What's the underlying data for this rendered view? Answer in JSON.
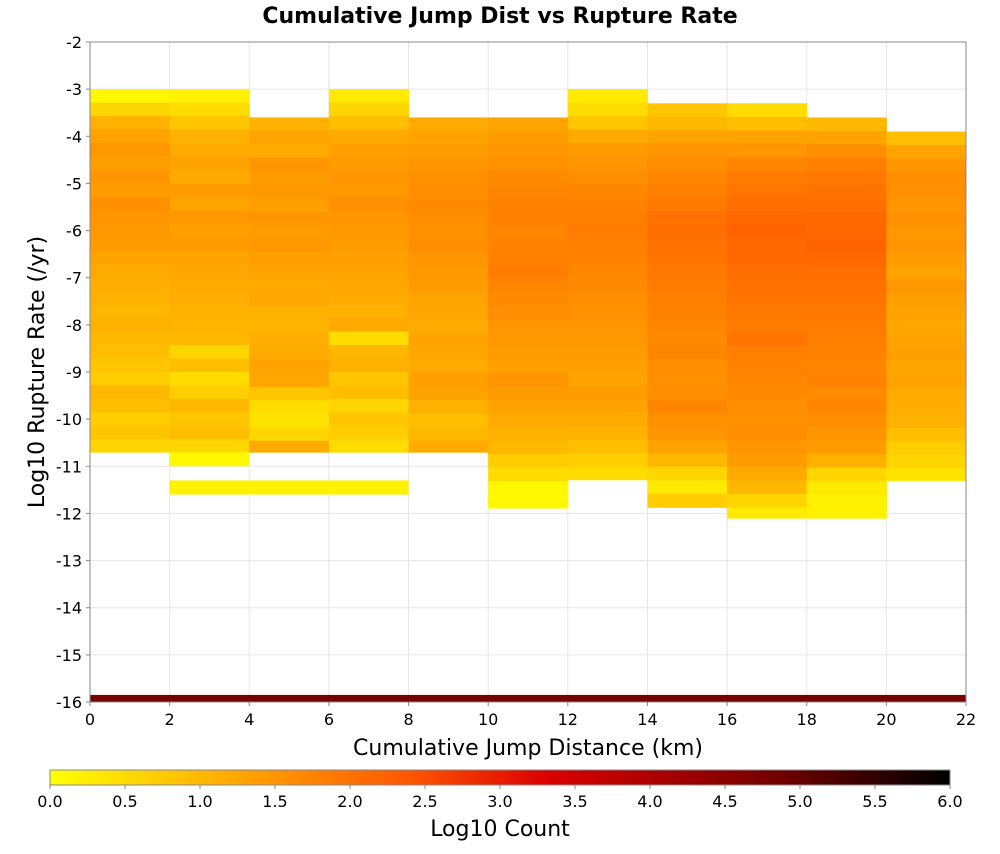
{
  "chart_data": {
    "type": "heatmap",
    "title": "Cumulative Jump Dist vs Rupture Rate",
    "xlabel": "Cumulative Jump Distance (km)",
    "ylabel": "Log10 Rupture Rate (/yr)",
    "xlim": [
      0,
      22
    ],
    "ylim": [
      -16,
      -2
    ],
    "x_ticks": [
      "0",
      "2",
      "4",
      "6",
      "8",
      "10",
      "12",
      "14",
      "16",
      "18",
      "20",
      "22"
    ],
    "y_ticks": [
      "-2",
      "-3",
      "-4",
      "-5",
      "-6",
      "-7",
      "-8",
      "-9",
      "-10",
      "-11",
      "-12",
      "-13",
      "-14",
      "-15",
      "-16"
    ],
    "x_bin_width": 2,
    "y_bin_height": 0.2857,
    "grid": true,
    "colorbar": {
      "label": "Log10 Count",
      "range": [
        0,
        6
      ],
      "ticks": [
        "0.0",
        "0.5",
        "1.0",
        "1.5",
        "2.0",
        "2.5",
        "3.0",
        "3.5",
        "4.0",
        "4.5",
        "5.0",
        "5.5",
        "6.0"
      ],
      "colors": [
        "#ffff00",
        "#ffaa00",
        "#ff5500",
        "#dd0000",
        "#770000",
        "#000000"
      ]
    },
    "columns": [
      {
        "x_start": 0,
        "y_top": -3.0,
        "y_bottom": -10.7,
        "values": [
          0.1,
          0.6,
          1.1,
          1.3,
          1.45,
          1.35,
          1.5,
          1.4,
          1.55,
          1.5,
          1.45,
          1.4,
          1.3,
          1.2,
          1.15,
          1.1,
          1.0,
          1.1,
          1.0,
          0.9,
          0.8,
          0.7,
          1.0,
          0.9,
          0.7,
          0.8,
          0.6
        ]
      },
      {
        "x_start": 2,
        "y_top": -3.0,
        "y_bottom": -10.7,
        "values": [
          0.2,
          0.5,
          0.8,
          1.1,
          1.2,
          1.3,
          1.2,
          1.4,
          1.3,
          1.45,
          1.35,
          1.4,
          1.3,
          1.25,
          1.2,
          1.15,
          1.1,
          1.05,
          1.0,
          0.6,
          0.9,
          0.5,
          0.7,
          1.0,
          0.8,
          0.9,
          0.6
        ]
      },
      {
        "x_start": 4,
        "y_top": -3.6,
        "y_bottom": -10.7,
        "values": [
          1.1,
          1.3,
          1.2,
          1.5,
          1.4,
          1.45,
          1.35,
          1.5,
          1.4,
          1.45,
          1.35,
          1.3,
          1.2,
          1.25,
          1.1,
          1.05,
          1.15,
          1.2,
          1.3,
          1.25,
          0.8,
          0.5,
          0.4,
          0.6,
          1.2
        ]
      },
      {
        "x_start": 6,
        "y_top": -3.0,
        "y_bottom": -10.7,
        "values": [
          0.3,
          0.6,
          0.9,
          1.2,
          1.35,
          1.4,
          1.5,
          1.45,
          1.55,
          1.5,
          1.45,
          1.4,
          1.35,
          1.3,
          1.25,
          1.2,
          1.1,
          1.2,
          0.5,
          1.0,
          1.1,
          0.8,
          0.9,
          0.6,
          0.8,
          0.7,
          0.5
        ]
      },
      {
        "x_start": 8,
        "y_top": -3.6,
        "y_bottom": -10.7,
        "values": [
          1.2,
          1.3,
          1.4,
          1.5,
          1.55,
          1.6,
          1.65,
          1.6,
          1.55,
          1.6,
          1.5,
          1.45,
          1.4,
          1.3,
          1.25,
          1.2,
          1.3,
          1.25,
          1.2,
          1.35,
          1.3,
          1.1,
          0.9,
          1.0,
          1.2
        ]
      },
      {
        "x_start": 10,
        "y_top": -3.6,
        "y_bottom": -11.9,
        "values": [
          1.3,
          1.4,
          1.5,
          1.55,
          1.65,
          1.7,
          1.75,
          1.8,
          1.7,
          1.75,
          1.8,
          1.85,
          1.7,
          1.65,
          1.6,
          1.5,
          1.45,
          1.4,
          1.35,
          1.5,
          1.4,
          1.3,
          1.2,
          1.1,
          1.0,
          0.7,
          0.5,
          0.1,
          0.1
        ]
      },
      {
        "x_start": 12,
        "y_top": -3.0,
        "y_bottom": -11.3,
        "values": [
          0.3,
          0.5,
          0.8,
          1.2,
          1.4,
          1.5,
          1.6,
          1.7,
          1.75,
          1.8,
          1.85,
          1.8,
          1.75,
          1.7,
          1.65,
          1.6,
          1.55,
          1.5,
          1.45,
          1.4,
          1.35,
          1.3,
          1.4,
          1.3,
          1.2,
          1.1,
          0.9,
          0.7,
          0.5
        ]
      },
      {
        "x_start": 14,
        "y_top": -3.3,
        "y_bottom": -11.9,
        "values": [
          0.8,
          1.0,
          1.3,
          1.5,
          1.6,
          1.7,
          1.8,
          1.9,
          2.0,
          2.05,
          2.0,
          1.95,
          1.9,
          1.85,
          1.8,
          1.75,
          1.7,
          1.65,
          1.7,
          1.6,
          1.55,
          1.6,
          1.7,
          1.55,
          1.5,
          1.3,
          1.0,
          0.6,
          0.3,
          0.7
        ]
      },
      {
        "x_start": 16,
        "y_top": -3.3,
        "y_bottom": -12.1,
        "values": [
          0.5,
          0.9,
          1.3,
          1.5,
          1.7,
          1.85,
          1.95,
          2.05,
          2.15,
          2.2,
          2.15,
          2.1,
          2.05,
          2.0,
          1.95,
          1.9,
          1.85,
          1.95,
          1.8,
          1.75,
          1.7,
          1.65,
          1.6,
          1.55,
          1.6,
          1.5,
          1.4,
          1.2,
          1.0,
          0.6,
          0.3
        ]
      },
      {
        "x_start": 18,
        "y_top": -3.6,
        "y_bottom": -12.1,
        "values": [
          1.0,
          1.3,
          1.6,
          1.8,
          1.9,
          2.0,
          2.05,
          2.1,
          2.15,
          2.2,
          2.15,
          2.05,
          2.0,
          1.95,
          1.9,
          1.85,
          1.8,
          1.75,
          1.7,
          1.75,
          1.65,
          1.7,
          1.6,
          1.5,
          1.4,
          1.1,
          0.6,
          0.3,
          0.2,
          0.2
        ]
      },
      {
        "x_start": 20,
        "y_top": -3.9,
        "y_bottom": -11.3,
        "values": [
          0.9,
          1.3,
          1.5,
          1.6,
          1.55,
          1.5,
          1.55,
          1.45,
          1.5,
          1.4,
          1.3,
          1.45,
          1.35,
          1.3,
          1.25,
          1.3,
          1.35,
          1.25,
          1.3,
          1.2,
          1.15,
          1.1,
          0.9,
          0.7,
          0.6,
          0.4
        ]
      }
    ],
    "bottom_band": {
      "y_start": -16.0,
      "y_end": -15.85,
      "x_start": 0,
      "x_end": 22,
      "value": 4.8
    }
  }
}
